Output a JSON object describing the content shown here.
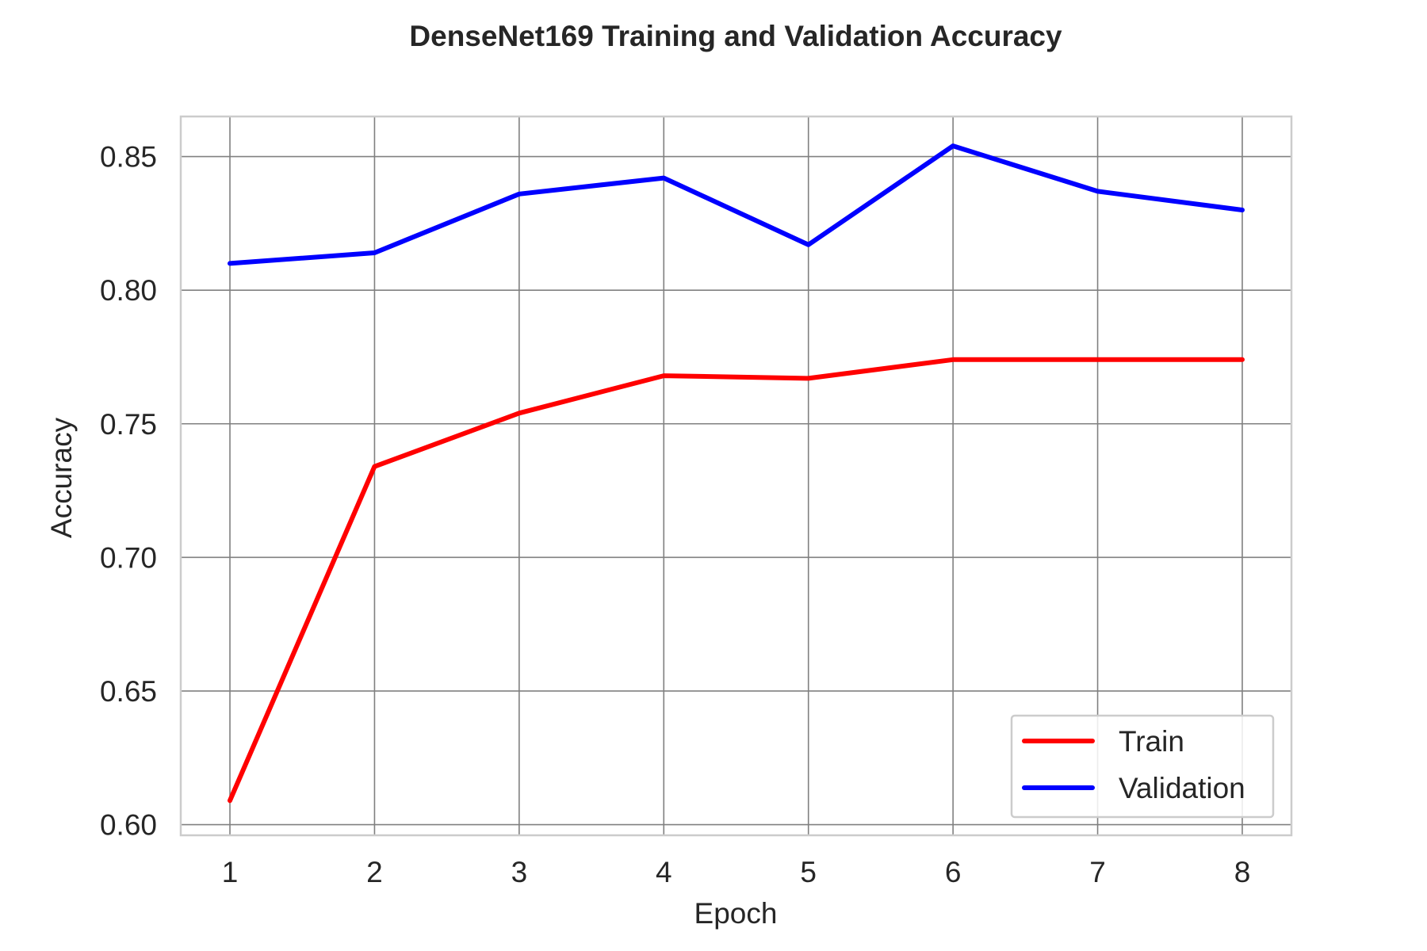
{
  "chart_data": {
    "type": "line",
    "title": "DenseNet169 Training and Validation Accuracy",
    "xlabel": "Epoch",
    "ylabel": "Accuracy",
    "x": [
      1,
      2,
      3,
      4,
      5,
      6,
      7,
      8
    ],
    "x_ticks": [
      "1",
      "2",
      "3",
      "4",
      "5",
      "6",
      "7",
      "8"
    ],
    "y_ticks": [
      "0.60",
      "0.65",
      "0.70",
      "0.75",
      "0.80",
      "0.85"
    ],
    "y_tick_values": [
      0.6,
      0.65,
      0.7,
      0.75,
      0.8,
      0.85
    ],
    "xlim": [
      0.66,
      8.34
    ],
    "ylim": [
      0.596,
      0.865
    ],
    "grid": true,
    "legend_position": "lower-right",
    "series": [
      {
        "name": "Train",
        "color": "#ff0000",
        "values": [
          0.609,
          0.734,
          0.754,
          0.768,
          0.767,
          0.774,
          0.774,
          0.774
        ]
      },
      {
        "name": "Validation",
        "color": "#0000ff",
        "values": [
          0.81,
          0.814,
          0.836,
          0.842,
          0.817,
          0.854,
          0.837,
          0.83
        ]
      }
    ]
  }
}
